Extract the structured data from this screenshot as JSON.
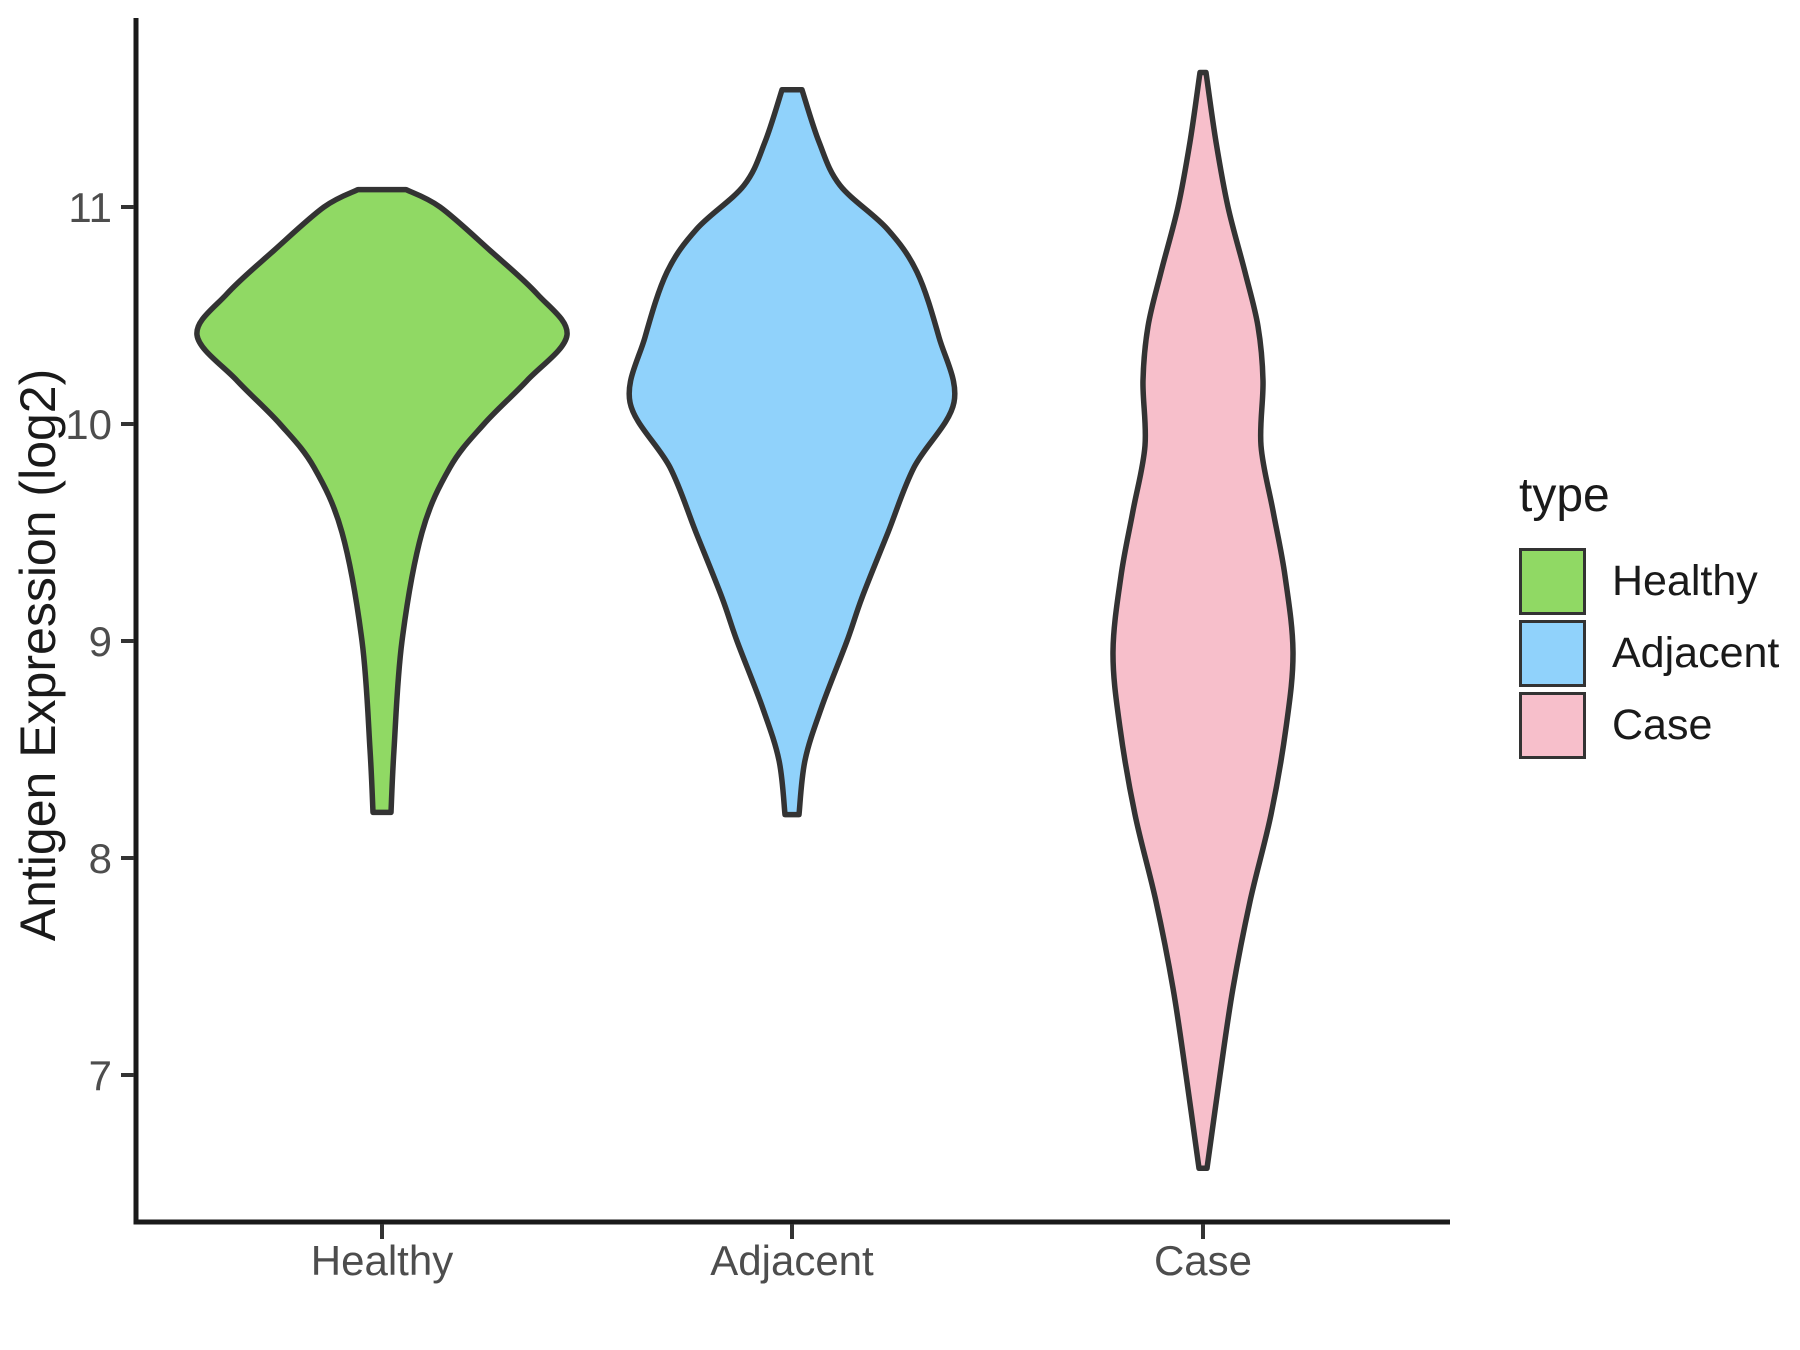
{
  "colors": {
    "background": "#FFFFFF",
    "violin_outline": "#333333",
    "axis_line": "#1A1A1A",
    "tick_mark": "#333333",
    "tick_label": "#4D4D4D",
    "axis_title": "#1A1A1A",
    "legend_text": "#1A1A1A",
    "healthy_fill": "#90D964",
    "adjacent_fill": "#90D2FB",
    "case_fill": "#F7BFCB"
  },
  "chart_data": {
    "type": "violin",
    "title": "",
    "xlabel": "",
    "ylabel": "Antigen Expression (log2)",
    "categories": [
      "Healthy",
      "Adjacent",
      "Case"
    ],
    "y_ticks": [
      7,
      8,
      9,
      10,
      11
    ],
    "ylim": [
      6.4,
      11.9
    ],
    "grid": "off",
    "legend_position": "right",
    "legend": {
      "title": "type",
      "entries": [
        {
          "label": "Healthy",
          "color": "#90D964"
        },
        {
          "label": "Adjacent",
          "color": "#90D2FB"
        },
        {
          "label": "Case",
          "color": "#F7BFCB"
        }
      ]
    },
    "series": [
      {
        "name": "Healthy",
        "fill": "#90D964",
        "min_value": 8.2,
        "max_value": 11.08,
        "widest_at": 10.4,
        "profile": [
          [
            8.21,
            9
          ],
          [
            8.5,
            12
          ],
          [
            9.0,
            20
          ],
          [
            9.5,
            40
          ],
          [
            9.8,
            68
          ],
          [
            10.0,
            102
          ],
          [
            10.2,
            145
          ],
          [
            10.41,
            185
          ],
          [
            10.6,
            155
          ],
          [
            10.8,
            108
          ],
          [
            11.0,
            58
          ],
          [
            11.08,
            24
          ]
        ]
      },
      {
        "name": "Adjacent",
        "fill": "#90D2FB",
        "min_value": 8.2,
        "max_value": 11.54,
        "widest_at": 10.1,
        "profile": [
          [
            8.2,
            7
          ],
          [
            8.45,
            13
          ],
          [
            8.7,
            30
          ],
          [
            9.0,
            55
          ],
          [
            9.2,
            70
          ],
          [
            9.5,
            96
          ],
          [
            9.8,
            122
          ],
          [
            10.1,
            162
          ],
          [
            10.4,
            147
          ],
          [
            10.7,
            125
          ],
          [
            10.9,
            95
          ],
          [
            11.1,
            48
          ],
          [
            11.3,
            27
          ],
          [
            11.54,
            10
          ]
        ]
      },
      {
        "name": "Case",
        "fill": "#F7BFCB",
        "min_value": 6.57,
        "max_value": 11.62,
        "widest_at": 9.0,
        "profile": [
          [
            6.57,
            4
          ],
          [
            7.0,
            17
          ],
          [
            7.4,
            30
          ],
          [
            7.8,
            47
          ],
          [
            8.2,
            68
          ],
          [
            8.6,
            83
          ],
          [
            8.95,
            90
          ],
          [
            9.3,
            82
          ],
          [
            9.6,
            70
          ],
          [
            9.9,
            58
          ],
          [
            10.2,
            60
          ],
          [
            10.45,
            55
          ],
          [
            10.7,
            42
          ],
          [
            11.0,
            25
          ],
          [
            11.3,
            13
          ],
          [
            11.62,
            3
          ]
        ]
      }
    ]
  }
}
